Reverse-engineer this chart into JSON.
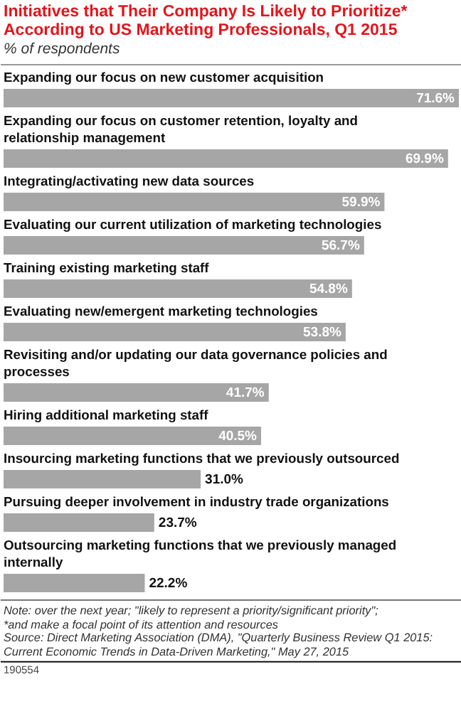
{
  "chart_data": {
    "type": "bar",
    "orientation": "horizontal",
    "title": "Initiatives that Their Company Is Likely to Prioritize* According to US Marketing Professionals, Q1 2015",
    "subtitle": "% of respondents",
    "categories": [
      "Expanding our focus on new customer acquisition",
      "Expanding our focus on customer retention, loyalty and relationship management",
      "Integrating/activating new data sources",
      "Evaluating our current utilization of marketing technologies",
      "Training existing marketing staff",
      "Evaluating new/emergent marketing technologies",
      "Revisiting and/or updating our data governance policies and processes",
      "Hiring additional marketing staff",
      "Insourcing marketing functions that we previously outsourced",
      "Pursuing deeper involvement in industry trade organizations",
      "Outsourcing marketing functions that we previously managed internally"
    ],
    "values": [
      71.6,
      69.9,
      59.9,
      56.7,
      54.8,
      53.8,
      41.7,
      40.5,
      31.0,
      23.7,
      22.2
    ],
    "value_labels": [
      "71.6%",
      "69.9%",
      "59.9%",
      "56.7%",
      "54.8%",
      "53.8%",
      "41.7%",
      "40.5%",
      "31.0%",
      "23.7%",
      "22.2%"
    ],
    "color": "#a6a6a6",
    "annotations": [
      "Note: over the next year; \"likely to represent a priority/significant priority\"; *and make a focal point of its attention and resources",
      "Source: Direct Marketing Association (DMA), \"Quarterly Business Review Q1 2015: Current Economic Trends in Data-Driven Marketing,\" May 27, 2015",
      "190554"
    ]
  }
}
